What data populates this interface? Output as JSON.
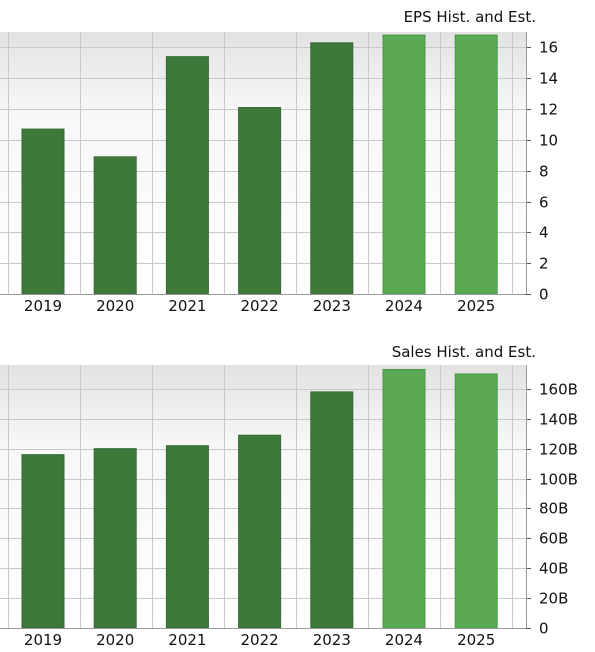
{
  "chart_data": [
    {
      "type": "bar",
      "title": "EPS Hist. and Est.",
      "categories": [
        "2019",
        "2020",
        "2021",
        "2022",
        "2023",
        "2024",
        "2025"
      ],
      "values": [
        10.7,
        8.9,
        15.4,
        12.1,
        16.3,
        16.8,
        16.8
      ],
      "estimated": [
        false,
        false,
        false,
        false,
        false,
        true,
        true
      ],
      "ylim": [
        0,
        17
      ],
      "yticks": [
        0,
        2,
        4,
        6,
        8,
        10,
        12,
        14,
        16
      ],
      "ytick_labels": [
        "0",
        "2",
        "4",
        "6",
        "8",
        "10",
        "12",
        "14",
        "16"
      ],
      "grid": true,
      "colors": {
        "historical": "#3d7a3a",
        "estimate": "#5aaa55"
      }
    },
    {
      "type": "bar",
      "title": "Sales Hist. and Est.",
      "categories": [
        "2019",
        "2020",
        "2021",
        "2022",
        "2023",
        "2024",
        "2025"
      ],
      "values": [
        116,
        120,
        122,
        129,
        158,
        173,
        170
      ],
      "estimated": [
        false,
        false,
        false,
        false,
        false,
        true,
        true
      ],
      "ylim": [
        0,
        176
      ],
      "yticks": [
        0,
        20,
        40,
        60,
        80,
        100,
        120,
        140,
        160
      ],
      "ytick_labels": [
        "0",
        "20B",
        "40B",
        "60B",
        "80B",
        "100B",
        "120B",
        "140B",
        "160B"
      ],
      "grid": true,
      "colors": {
        "historical": "#3d7a3a",
        "estimate": "#5aaa55"
      }
    }
  ]
}
